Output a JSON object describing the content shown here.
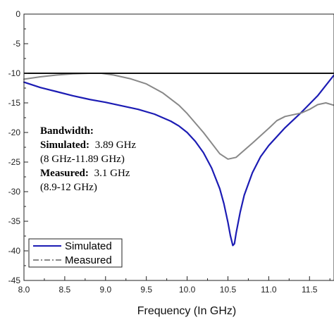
{
  "chart_data": {
    "type": "line",
    "title": "",
    "xlabel": "Frequency (In GHz)",
    "ylabel": "",
    "xlim": [
      8.0,
      11.8
    ],
    "ylim": [
      -45,
      0
    ],
    "xticks": [
      8.0,
      8.5,
      9.0,
      9.5,
      10.0,
      10.5,
      11.0,
      11.5
    ],
    "xtick_labels": [
      "8.0",
      "8.5",
      "9.0",
      "9.5",
      "10.0",
      "10.5",
      "11.0",
      "11.5"
    ],
    "yticks": [
      0,
      -5,
      -10,
      -15,
      -20,
      -25,
      -30,
      -35,
      -40,
      -45
    ],
    "ytick_labels": [
      "0",
      "-5",
      "-10",
      "-15",
      "-20",
      "-25",
      "-30",
      "-35",
      "-40",
      "-45"
    ],
    "grid": false,
    "reference_line": {
      "y": -10,
      "color": "#111111"
    },
    "legend_placement": "bottom-left",
    "series": [
      {
        "name": "Simulated",
        "color": "#1c1cb4",
        "style": "solid",
        "x": [
          8.0,
          8.2,
          8.4,
          8.6,
          8.8,
          9.0,
          9.2,
          9.4,
          9.6,
          9.8,
          9.9,
          10.0,
          10.1,
          10.2,
          10.3,
          10.4,
          10.45,
          10.5,
          10.53,
          10.56,
          10.58,
          10.6,
          10.65,
          10.7,
          10.8,
          10.9,
          11.0,
          11.2,
          11.4,
          11.6,
          11.8
        ],
        "y": [
          -11.5,
          -12.4,
          -13.1,
          -13.8,
          -14.4,
          -14.9,
          -15.5,
          -16.1,
          -16.9,
          -18.1,
          -18.9,
          -20.0,
          -21.5,
          -23.4,
          -26.0,
          -29.5,
          -32.0,
          -35.2,
          -37.4,
          -39.1,
          -38.8,
          -37.0,
          -33.5,
          -30.6,
          -26.8,
          -24.1,
          -22.2,
          -19.2,
          -16.6,
          -13.8,
          -10.3
        ]
      },
      {
        "name": "Measured",
        "color": "#888888",
        "style": "dashdot",
        "x": [
          8.0,
          8.2,
          8.4,
          8.6,
          8.8,
          8.95,
          9.1,
          9.3,
          9.5,
          9.7,
          9.9,
          10.0,
          10.2,
          10.4,
          10.5,
          10.6,
          10.8,
          11.0,
          11.1,
          11.2,
          11.3,
          11.4,
          11.5,
          11.6,
          11.7,
          11.8
        ],
        "y": [
          -11.0,
          -10.6,
          -10.3,
          -10.1,
          -10.0,
          -10.0,
          -10.3,
          -10.9,
          -11.8,
          -13.3,
          -15.4,
          -16.8,
          -20.0,
          -23.6,
          -24.5,
          -24.2,
          -21.8,
          -19.3,
          -18.0,
          -17.3,
          -17.0,
          -16.7,
          -16.1,
          -15.3,
          -15.0,
          -15.4
        ]
      }
    ],
    "annotation": {
      "heading": "Bandwidth:",
      "simulated_label": "Simulated:",
      "simulated_value": "3.89 GHz",
      "simulated_range": "(8 GHz-11.89 GHz)",
      "measured_label": "Measured:",
      "measured_value": "3.1 GHz",
      "measured_range": "(8.9-12 GHz)"
    }
  }
}
